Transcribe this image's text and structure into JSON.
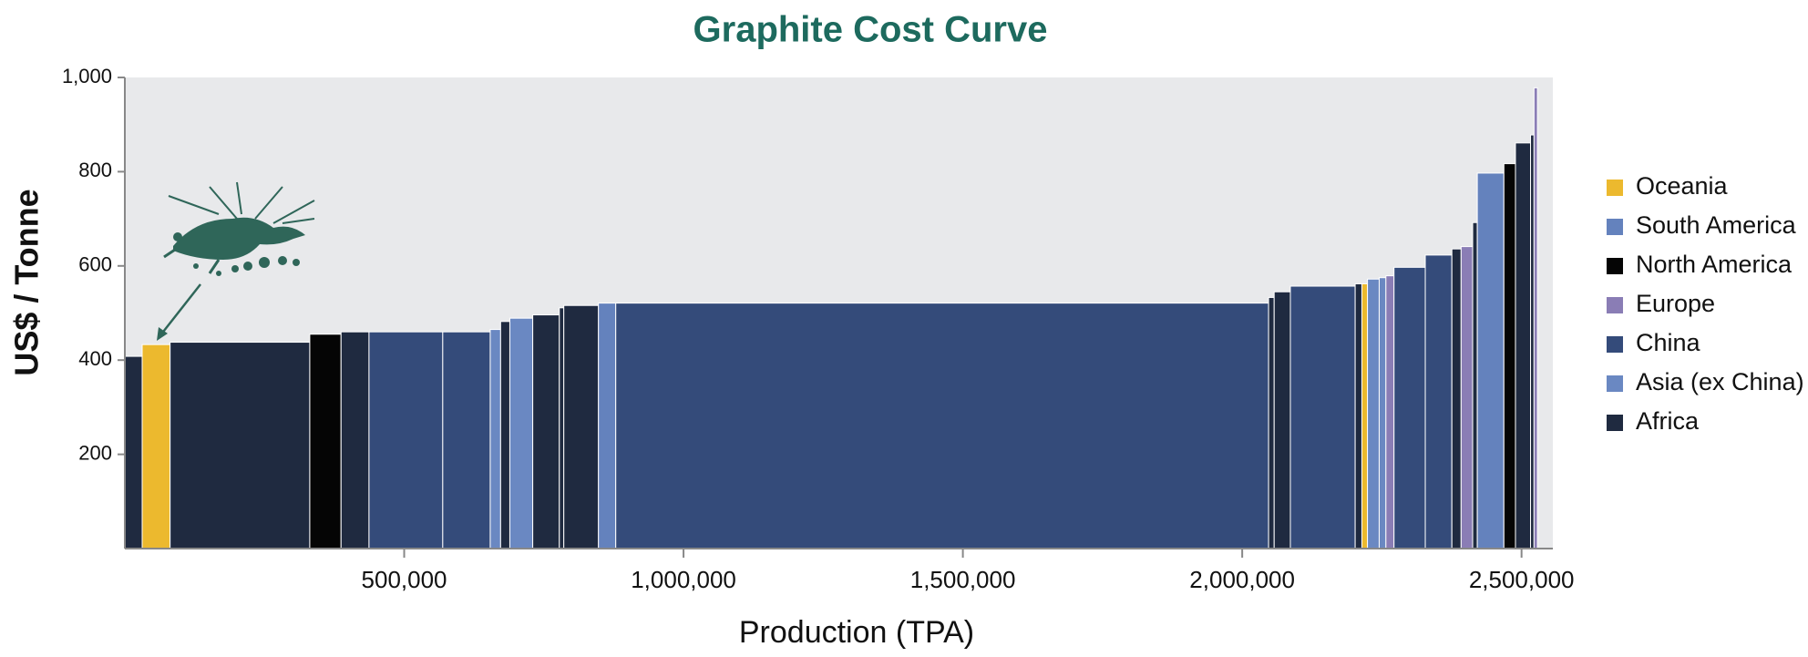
{
  "chart_data": {
    "type": "costcurve",
    "title": "Graphite Cost Curve",
    "x_label": "Production (TPA)",
    "y_label": "US$ / Tonne",
    "series": [
      {
        "name": "Oceania",
        "color": "#ecb92e"
      },
      {
        "name": "South America",
        "color": "#6482bd"
      },
      {
        "name": "North America",
        "color": "#050505"
      },
      {
        "name": "Europe",
        "color": "#8a7db5"
      },
      {
        "name": "China",
        "color": "#344b7a"
      },
      {
        "name": "Asia (ex China)",
        "color": "#6a88c2"
      },
      {
        "name": "Africa",
        "color": "#1f2a40"
      }
    ],
    "groups": [
      "Africa",
      "Oceania",
      "Africa",
      "North America",
      "Africa",
      "China",
      "China",
      "Asia (ex China)",
      "Africa",
      "Asia (ex China)",
      "Africa",
      "Africa",
      "Africa",
      "South America",
      "China",
      "Africa",
      "Africa",
      "China",
      "Africa",
      "Oceania",
      "Asia (ex China)",
      "Asia (ex China)",
      "Europe",
      "China",
      "China",
      "Africa",
      "Europe",
      "Africa",
      "South America",
      "North America",
      "Africa",
      "Africa",
      "Europe"
    ],
    "widths": [
      31000,
      50000,
      250000,
      56000,
      50000,
      132000,
      85000,
      18600,
      16500,
      41000,
      47600,
      8000,
      62000,
      31000,
      1168500,
      10000,
      29000,
      116000,
      12000,
      10000,
      21000,
      12000,
      14500,
      56000,
      47600,
      16500,
      20700,
      8300,
      47600,
      20700,
      27000,
      6200,
      6200
    ],
    "values": [
      408,
      433,
      438,
      455,
      460,
      460,
      460,
      465,
      482,
      489,
      496,
      511,
      516,
      521,
      521,
      533,
      545,
      557,
      562,
      562,
      572,
      575,
      579,
      597,
      623,
      636,
      641,
      692,
      797,
      817,
      861,
      878,
      978
    ],
    "xlim": [
      0,
      2556000
    ],
    "xticks": [
      {
        "value": 500000,
        "label": "500,000"
      },
      {
        "value": 1000000,
        "label": "1,000,000"
      },
      {
        "value": 1500000,
        "label": "1,500,000"
      },
      {
        "value": 2000000,
        "label": "2,000,000"
      },
      {
        "value": 2500000,
        "label": "2,500,000"
      }
    ],
    "ylim": [
      0,
      1000
    ],
    "yticks": [
      200,
      400,
      600,
      800,
      {
        "value": 1000,
        "label": "1,000"
      }
    ],
    "background": "#e8e9eb"
  }
}
